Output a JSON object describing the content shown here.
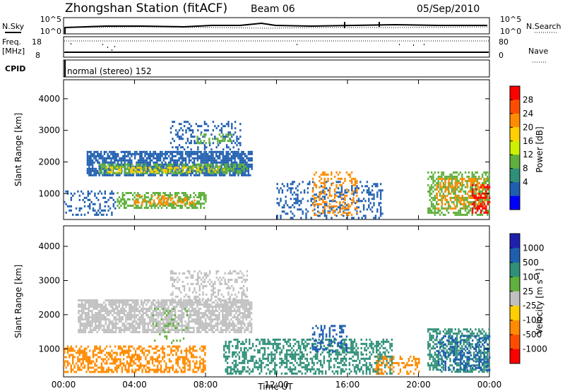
{
  "header": {
    "title": "Zhongshan Station (fitACF)",
    "beam": "Beam 06",
    "date": "05/Sep/2010"
  },
  "status_panel": {
    "nsky_label": "N.Sky",
    "nsky_ticks": [
      "10^5",
      "10^0"
    ],
    "nsearch_label": "N.Search",
    "nsearch_ticks": [
      "10^5",
      "10^0"
    ],
    "freq_label": "Freq.",
    "freq_unit": "[MHz]",
    "freq_ticks": [
      "18",
      "8"
    ],
    "nave_label": "Nave",
    "nave_ticks": [
      "80",
      "0"
    ],
    "cpid_label": "CPID",
    "cpid_value": "normal (stereo) 152"
  },
  "chart_data": [
    {
      "type": "heatmap",
      "name": "power",
      "ylabel": "Slant Range [km]",
      "xlabel": "",
      "x_ticks": [
        "00:00",
        "04:00",
        "08:00",
        "12:00",
        "16:00",
        "20:00",
        "00:00"
      ],
      "y_ticks": [
        "1000",
        "2000",
        "3000",
        "4000"
      ],
      "xlim_hours": [
        0,
        24
      ],
      "ylim_km": [
        180,
        4600
      ],
      "colorbar": {
        "label": "Power [dB]",
        "tick_labels": [
          "28",
          "24",
          "20",
          "16",
          "12",
          "8",
          "4"
        ],
        "colors": [
          "#ff0000",
          "#ff4d00",
          "#ff8c00",
          "#ffd000",
          "#ccf000",
          "#5fb03c",
          "#2f8f78",
          "#1f5fb0",
          "#0000ff"
        ]
      },
      "regions": [
        {
          "t0": 1.3,
          "t1": 10.6,
          "r0": 1550,
          "r1": 2350,
          "color": "#1f5fb0",
          "density": 0.75
        },
        {
          "t0": 2.0,
          "t1": 10.4,
          "r0": 1650,
          "r1": 1950,
          "color": "#5fb03c",
          "density": 0.55
        },
        {
          "t0": 2.4,
          "t1": 9.0,
          "r0": 1700,
          "r1": 1850,
          "color": "#ffd000",
          "density": 0.35
        },
        {
          "t0": 6.0,
          "t1": 10.0,
          "r0": 2400,
          "r1": 3300,
          "color": "#1f5fb0",
          "density": 0.25
        },
        {
          "t0": 7.5,
          "t1": 9.5,
          "r0": 2600,
          "r1": 2900,
          "color": "#5fb03c",
          "density": 0.4
        },
        {
          "t0": 3.0,
          "t1": 8.0,
          "r0": 550,
          "r1": 1050,
          "color": "#5fb03c",
          "density": 0.55
        },
        {
          "t0": 4.0,
          "t1": 7.5,
          "r0": 650,
          "r1": 950,
          "color": "#ff8c00",
          "density": 0.3
        },
        {
          "t0": 0.0,
          "t1": 3.0,
          "r0": 300,
          "r1": 1100,
          "color": "#1f5fb0",
          "density": 0.25
        },
        {
          "t0": 12.0,
          "t1": 18.0,
          "r0": 250,
          "r1": 1400,
          "color": "#1f5fb0",
          "density": 0.25
        },
        {
          "t0": 14.0,
          "t1": 16.5,
          "r0": 300,
          "r1": 1700,
          "color": "#ff8c00",
          "density": 0.3
        },
        {
          "t0": 20.5,
          "t1": 24.0,
          "r0": 300,
          "r1": 1700,
          "color": "#5fb03c",
          "density": 0.5
        },
        {
          "t0": 21.0,
          "t1": 23.8,
          "r0": 500,
          "r1": 1500,
          "color": "#ff8c00",
          "density": 0.35
        },
        {
          "t0": 23.0,
          "t1": 24.0,
          "r0": 400,
          "r1": 1300,
          "color": "#ff0000",
          "density": 0.35
        }
      ]
    },
    {
      "type": "heatmap",
      "name": "velocity",
      "ylabel": "Slant Range [km]",
      "xlabel": "Time UT",
      "x_ticks": [
        "00:00",
        "04:00",
        "08:00",
        "12:00",
        "16:00",
        "20:00",
        "00:00"
      ],
      "y_ticks": [
        "1000",
        "2000",
        "3000",
        "4000"
      ],
      "xlim_hours": [
        0,
        24
      ],
      "ylim_km": [
        180,
        4600
      ],
      "colorbar": {
        "label": "Velocity [m s⁻¹]",
        "tick_labels": [
          "1000",
          "500",
          "100",
          "25",
          "-25",
          "-100",
          "-500",
          "-1000"
        ],
        "colors": [
          "#2020b0",
          "#1f5fb0",
          "#2f8f78",
          "#5fb03c",
          "#c0c0c0",
          "#ffd000",
          "#ff8c00",
          "#ff4d00",
          "#ff0000"
        ]
      },
      "regions": [
        {
          "t0": 0.8,
          "t1": 10.6,
          "r0": 1500,
          "r1": 2450,
          "color": "#c0c0c0",
          "density": 0.75
        },
        {
          "t0": 6.0,
          "t1": 10.3,
          "r0": 2400,
          "r1": 3300,
          "color": "#c0c0c0",
          "density": 0.3
        },
        {
          "t0": 0.0,
          "t1": 8.0,
          "r0": 300,
          "r1": 1100,
          "color": "#ff8c00",
          "density": 0.5
        },
        {
          "t0": 5.0,
          "t1": 7.0,
          "r0": 1200,
          "r1": 2200,
          "color": "#5fb03c",
          "density": 0.12
        },
        {
          "t0": 9.0,
          "t1": 18.5,
          "r0": 300,
          "r1": 1300,
          "color": "#2f8f78",
          "density": 0.45
        },
        {
          "t0": 14.0,
          "t1": 16.0,
          "r0": 900,
          "r1": 1700,
          "color": "#1f5fb0",
          "density": 0.3
        },
        {
          "t0": 17.5,
          "t1": 20.0,
          "r0": 250,
          "r1": 800,
          "color": "#ff8c00",
          "density": 0.35
        },
        {
          "t0": 20.5,
          "t1": 24.0,
          "r0": 300,
          "r1": 1600,
          "color": "#2f8f78",
          "density": 0.55
        },
        {
          "t0": 21.0,
          "t1": 24.0,
          "r0": 400,
          "r1": 1400,
          "color": "#1f5fb0",
          "density": 0.3
        }
      ]
    }
  ]
}
